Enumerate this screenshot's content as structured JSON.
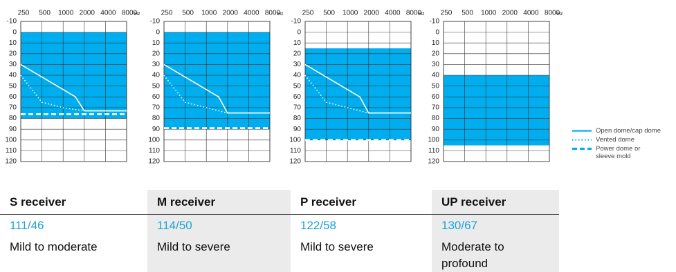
{
  "chart_data": [
    {
      "type": "audiogram",
      "color": "#00aeef",
      "xlim": [
        250,
        8000
      ],
      "xticks": [
        250,
        500,
        1000,
        2000,
        4000,
        8000
      ],
      "xunit": "Hz",
      "log_x": true,
      "ylim": [
        -10,
        120
      ],
      "yticks": [
        -10,
        0,
        10,
        20,
        30,
        40,
        50,
        60,
        70,
        80,
        90,
        100,
        110,
        120
      ],
      "grid": true,
      "band": [
        0,
        80
      ],
      "series": [
        {
          "style": "solid",
          "x": [
            250,
            1500,
            2000,
            8000
          ],
          "values": [
            30,
            60,
            73,
            73
          ]
        },
        {
          "style": "dotted",
          "x": [
            250,
            500,
            1000,
            2000,
            8000
          ],
          "values": [
            40,
            65,
            70,
            73,
            73
          ]
        },
        {
          "style": "dashed",
          "x": [
            250,
            8000
          ],
          "values": [
            76,
            76
          ]
        }
      ]
    },
    {
      "type": "audiogram",
      "color": "#00aeef",
      "xlim": [
        250,
        8000
      ],
      "xticks": [
        250,
        500,
        1000,
        2000,
        4000,
        8000
      ],
      "xunit": "Hz",
      "log_x": true,
      "ylim": [
        -10,
        120
      ],
      "yticks": [
        -10,
        0,
        10,
        20,
        30,
        40,
        50,
        60,
        70,
        80,
        90,
        100,
        110,
        120
      ],
      "grid": true,
      "band": [
        0,
        90
      ],
      "series": [
        {
          "style": "solid",
          "x": [
            250,
            1500,
            2000,
            8000
          ],
          "values": [
            30,
            60,
            75,
            75
          ]
        },
        {
          "style": "dotted",
          "x": [
            250,
            500,
            1000,
            2000,
            8000
          ],
          "values": [
            40,
            65,
            70,
            75,
            75
          ]
        },
        {
          "style": "dashed",
          "x": [
            250,
            8000
          ],
          "values": [
            89,
            89
          ]
        }
      ]
    },
    {
      "type": "audiogram",
      "color": "#00aeef",
      "xlim": [
        250,
        8000
      ],
      "xticks": [
        250,
        500,
        1000,
        2000,
        4000,
        8000
      ],
      "xunit": "Hz",
      "log_x": true,
      "ylim": [
        -10,
        120
      ],
      "yticks": [
        -10,
        0,
        10,
        20,
        30,
        40,
        50,
        60,
        70,
        80,
        90,
        100,
        110,
        120
      ],
      "grid": true,
      "band": [
        15,
        100
      ],
      "series": [
        {
          "style": "solid",
          "x": [
            250,
            1500,
            2000,
            8000
          ],
          "values": [
            30,
            60,
            75,
            75
          ]
        },
        {
          "style": "dotted",
          "x": [
            250,
            500,
            1000,
            2000,
            8000
          ],
          "values": [
            40,
            65,
            70,
            75,
            75
          ]
        },
        {
          "style": "dashed",
          "x": [
            250,
            8000
          ],
          "values": [
            100,
            100
          ]
        }
      ]
    },
    {
      "type": "audiogram",
      "color": "#00aeef",
      "xlim": [
        250,
        8000
      ],
      "xticks": [
        250,
        500,
        1000,
        2000,
        4000,
        8000
      ],
      "xunit": "Hz",
      "log_x": true,
      "ylim": [
        -10,
        120
      ],
      "yticks": [
        -10,
        0,
        10,
        20,
        30,
        40,
        50,
        60,
        70,
        80,
        90,
        100,
        110,
        120
      ],
      "grid": true,
      "band": [
        40,
        105
      ],
      "series": []
    }
  ],
  "legend": [
    {
      "name": "Open dome/cap dome",
      "style": "solid",
      "color": "#00aeef"
    },
    {
      "name": "Vented dome",
      "style": "dotted",
      "color": "#00aeef"
    },
    {
      "name": "Power dome or\nsleeve mold",
      "style": "dashed",
      "color": "#00aeef"
    }
  ],
  "table": {
    "value_color": "#1aa3d6",
    "columns": [
      {
        "header": "S receiver",
        "value": "111/46",
        "description": "Mild to moderate",
        "shaded": false
      },
      {
        "header": "M receiver",
        "value": "114/50",
        "description": "Mild to severe",
        "shaded": true
      },
      {
        "header": "P receiver",
        "value": "122/58",
        "description": "Mild to severe",
        "shaded": false
      },
      {
        "header": "UP receiver",
        "value": "130/67",
        "description": "Moderate to\nprofound",
        "shaded": true
      }
    ]
  }
}
